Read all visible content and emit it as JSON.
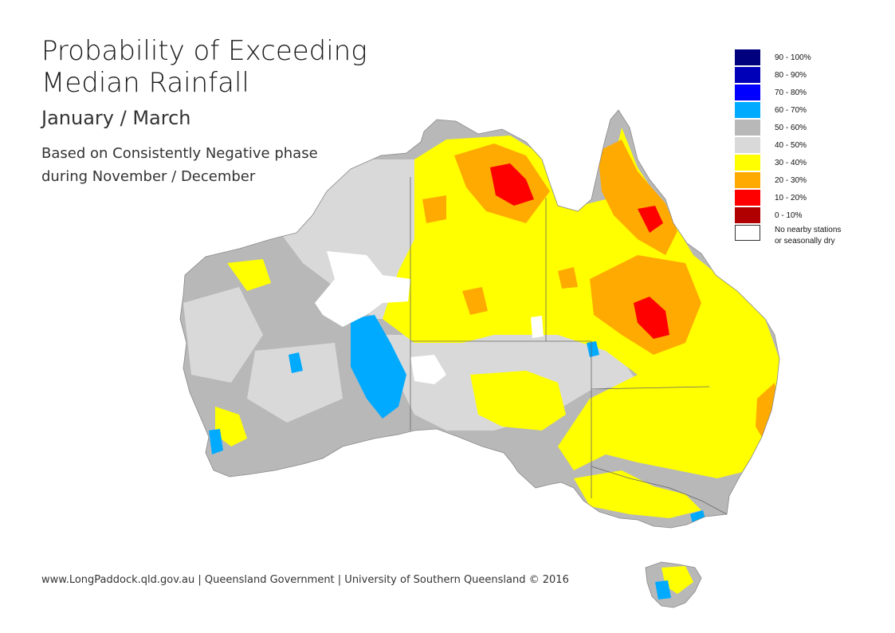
{
  "header": {
    "title_line1": "Probability of Exceeding",
    "title_line2": "Median Rainfall",
    "period": "January / March",
    "basis_line1": "Based on Consistently Negative phase",
    "basis_line2": "during November / December"
  },
  "legend": {
    "items": [
      {
        "label": "90 - 100%",
        "color": "#00007f"
      },
      {
        "label": "80 - 90%",
        "color": "#0000b8"
      },
      {
        "label": "70 - 80%",
        "color": "#0000ff"
      },
      {
        "label": "60 - 70%",
        "color": "#00aaff"
      },
      {
        "label": "50 - 60%",
        "color": "#b8b8b8"
      },
      {
        "label": "40 - 50%",
        "color": "#d9d9d9"
      },
      {
        "label": "30 - 40%",
        "color": "#ffff00"
      },
      {
        "label": "20 - 30%",
        "color": "#ffaa00"
      },
      {
        "label": "10 - 20%",
        "color": "#ff0000"
      },
      {
        "label": "0 - 10%",
        "color": "#b00000"
      },
      {
        "label": "No nearby stations",
        "label2": "or seasonally dry",
        "color": "#ffffff"
      }
    ]
  },
  "footer": {
    "credit": "www.LongPaddock.qld.gov.au | Queensland Government | University of Southern Queensland © 2016"
  }
}
